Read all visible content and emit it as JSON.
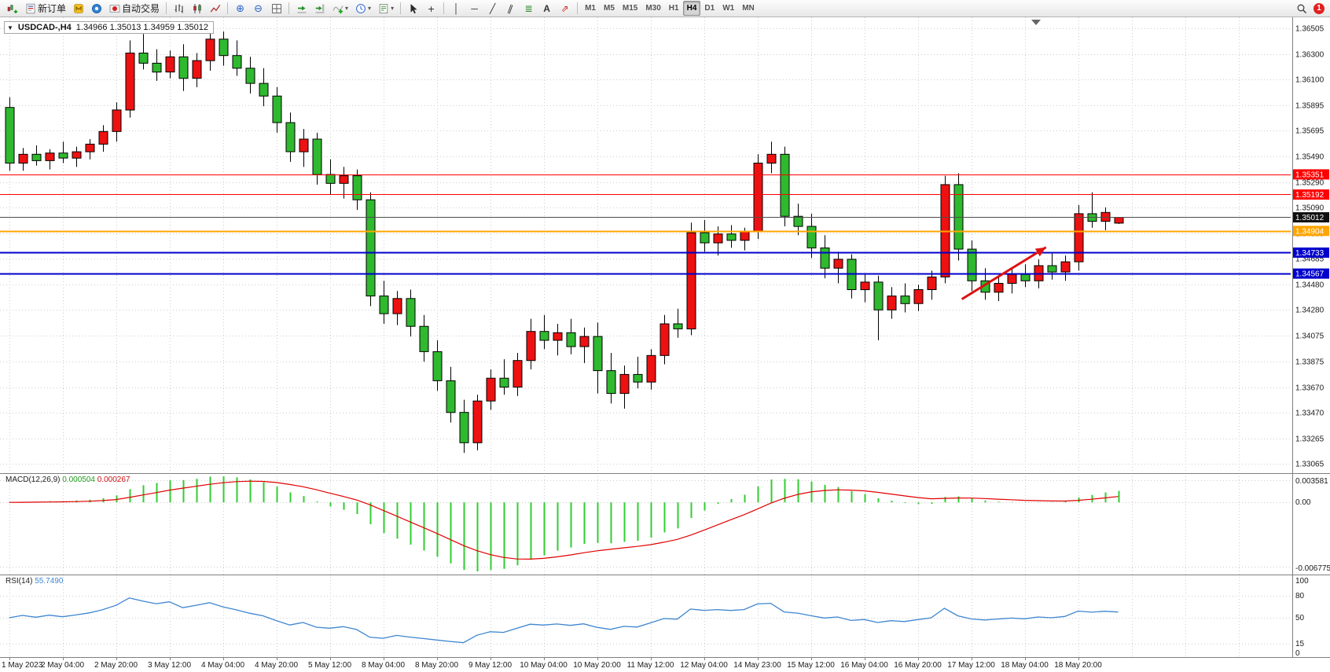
{
  "toolbar": {
    "groups": [
      {
        "name": "trade",
        "items": [
          {
            "name": "new-chart-button",
            "icon": "new-chart-icon"
          },
          {
            "name": "new-order-button",
            "icon": "new-order-icon",
            "label": "新订单"
          },
          {
            "name": "metaeditor-button",
            "icon": "metaeditor-icon"
          },
          {
            "name": "community-button",
            "icon": "community-icon"
          },
          {
            "name": "autotrading-button",
            "icon": "autotrading-icon",
            "label": "自动交易"
          }
        ]
      },
      {
        "name": "chart-types",
        "items": [
          {
            "name": "bar-chart-button",
            "icon": "bar-chart-icon"
          },
          {
            "name": "candlestick-chart-button",
            "icon": "candlestick-icon"
          },
          {
            "name": "line-chart-button",
            "icon": "line-chart-icon"
          }
        ]
      },
      {
        "name": "zoom",
        "items": [
          {
            "name": "zoom-in-button",
            "icon": "zoom-in-icon"
          },
          {
            "name": "zoom-out-button",
            "icon": "zoom-out-icon"
          },
          {
            "name": "tile-windows-button",
            "icon": "tile-windows-icon"
          }
        ]
      },
      {
        "name": "chart-tools",
        "items": [
          {
            "name": "auto-scroll-button",
            "icon": "auto-scroll-icon"
          },
          {
            "name": "chart-shift-button",
            "icon": "chart-shift-icon"
          },
          {
            "name": "indicators-button",
            "icon": "indicators-icon",
            "caret": true
          },
          {
            "name": "periods-button",
            "icon": "clock-icon",
            "caret": true
          },
          {
            "name": "templates-button",
            "icon": "templates-icon",
            "caret": true
          }
        ]
      },
      {
        "name": "cursor-tools",
        "items": [
          {
            "name": "cursor-button",
            "icon": "cursor-icon"
          },
          {
            "name": "crosshair-button",
            "icon": "crosshair-icon"
          }
        ]
      },
      {
        "name": "draw-tools",
        "items": [
          {
            "name": "vertical-line-button",
            "icon": "vertical-line-icon"
          },
          {
            "name": "horizontal-line-button",
            "icon": "horizontal-line-icon"
          },
          {
            "name": "trendline-button",
            "icon": "trendline-icon"
          },
          {
            "name": "channel-button",
            "icon": "channel-icon"
          },
          {
            "name": "fibonacci-button",
            "icon": "fibonacci-icon"
          },
          {
            "name": "text-button",
            "icon": "text-icon"
          },
          {
            "name": "arrows-button",
            "icon": "arrows-icon"
          }
        ]
      }
    ],
    "timeframes": [
      "M1",
      "M5",
      "M15",
      "M30",
      "H1",
      "H4",
      "D1",
      "W1",
      "MN"
    ],
    "active_timeframe": "H4",
    "notification_count": "1"
  },
  "chart": {
    "title": "USDCAD-,H4",
    "ohlc": "1.34966 1.35013 1.34959 1.35012"
  },
  "colors": {
    "bull": "#EE1111",
    "bear": "#2FB92F",
    "outline": "#000000",
    "grid": "#CDCDCD",
    "separator": "#7F7F7F",
    "axis_text": "#1a1a1a",
    "current_line": "#4D4D4D",
    "current_tag": "#111111",
    "macd_hist": "#32CD32",
    "macd_signal": "#E10000",
    "rsi_line": "#3E86D0",
    "arrow": "#DD1111"
  },
  "chart_data": {
    "type": "candlestick",
    "symbol": "USDCAD-",
    "timeframe": "H4",
    "current_bar": {
      "open": "1.34966",
      "high": "1.35013",
      "low": "1.34959",
      "close": "1.35012"
    },
    "view_range": {
      "top": 1.3658,
      "bottom": 1.3299
    },
    "price_axis_labels": [
      "1.36505",
      "1.36300",
      "1.36100",
      "1.35895",
      "1.35695",
      "1.35490",
      "1.35290",
      "1.35090",
      "1.34885",
      "1.34685",
      "1.34480",
      "1.34280",
      "1.34075",
      "1.33875",
      "1.33670",
      "1.33470",
      "1.33265",
      "1.33065"
    ],
    "time_labels": [
      "1 May 2023",
      "2 May 04:00",
      "2 May 20:00",
      "3 May 12:00",
      "4 May 04:00",
      "4 May 20:00",
      "5 May 12:00",
      "8 May 04:00",
      "8 May 20:00",
      "9 May 12:00",
      "10 May 04:00",
      "10 May 20:00",
      "11 May 12:00",
      "12 May 04:00",
      "14 May 23:00",
      "15 May 12:00",
      "16 May 04:00",
      "16 May 20:00",
      "17 May 12:00",
      "18 May 04:00",
      "18 May 20:00"
    ],
    "time_label_step": 4,
    "candles": [
      [
        1.3588,
        1.3596,
        1.3538,
        1.3544
      ],
      [
        1.3544,
        1.3556,
        1.3538,
        1.3551
      ],
      [
        1.3551,
        1.3558,
        1.3542,
        1.3546
      ],
      [
        1.3546,
        1.3555,
        1.3539,
        1.3552
      ],
      [
        1.3552,
        1.3561,
        1.3544,
        1.3548
      ],
      [
        1.3548,
        1.3557,
        1.3541,
        1.3553
      ],
      [
        1.3553,
        1.3563,
        1.3547,
        1.3559
      ],
      [
        1.3559,
        1.3574,
        1.3553,
        1.3569
      ],
      [
        1.3569,
        1.3592,
        1.3561,
        1.3586
      ],
      [
        1.3586,
        1.3641,
        1.358,
        1.3631
      ],
      [
        1.3631,
        1.3646,
        1.3618,
        1.3623
      ],
      [
        1.3623,
        1.3634,
        1.3609,
        1.3616
      ],
      [
        1.3616,
        1.3633,
        1.3611,
        1.3628
      ],
      [
        1.3628,
        1.3638,
        1.3601,
        1.3611
      ],
      [
        1.3611,
        1.3631,
        1.3604,
        1.3625
      ],
      [
        1.3625,
        1.3649,
        1.3617,
        1.3642
      ],
      [
        1.3642,
        1.3648,
        1.3621,
        1.3629
      ],
      [
        1.3629,
        1.3641,
        1.3613,
        1.3619
      ],
      [
        1.3619,
        1.3628,
        1.3599,
        1.3607
      ],
      [
        1.3607,
        1.3619,
        1.3589,
        1.3597
      ],
      [
        1.3597,
        1.3604,
        1.3568,
        1.3576
      ],
      [
        1.3576,
        1.3584,
        1.3545,
        1.3553
      ],
      [
        1.3553,
        1.3571,
        1.3541,
        1.3563
      ],
      [
        1.3563,
        1.3568,
        1.3527,
        1.3535
      ],
      [
        1.3535,
        1.3547,
        1.3519,
        1.3528
      ],
      [
        1.3528,
        1.3541,
        1.3516,
        1.3534
      ],
      [
        1.3534,
        1.3539,
        1.3507,
        1.3515
      ],
      [
        1.3515,
        1.3521,
        1.3431,
        1.3439
      ],
      [
        1.3439,
        1.3451,
        1.3417,
        1.3425
      ],
      [
        1.3425,
        1.3443,
        1.3416,
        1.3437
      ],
      [
        1.3437,
        1.3444,
        1.3407,
        1.3415
      ],
      [
        1.3415,
        1.3424,
        1.3387,
        1.3395
      ],
      [
        1.3395,
        1.3404,
        1.3364,
        1.3372
      ],
      [
        1.3372,
        1.3383,
        1.3339,
        1.3347
      ],
      [
        1.3347,
        1.3357,
        1.3315,
        1.3323
      ],
      [
        1.3323,
        1.3361,
        1.3317,
        1.3356
      ],
      [
        1.3356,
        1.3381,
        1.3349,
        1.3374
      ],
      [
        1.3374,
        1.3389,
        1.3361,
        1.3367
      ],
      [
        1.3367,
        1.3394,
        1.336,
        1.3388
      ],
      [
        1.3388,
        1.3421,
        1.3381,
        1.3411
      ],
      [
        1.3411,
        1.3424,
        1.3397,
        1.3404
      ],
      [
        1.3404,
        1.3417,
        1.3392,
        1.341
      ],
      [
        1.341,
        1.3421,
        1.3393,
        1.3399
      ],
      [
        1.3399,
        1.3414,
        1.3386,
        1.3407
      ],
      [
        1.3407,
        1.3418,
        1.3362,
        1.338
      ],
      [
        1.338,
        1.3394,
        1.3354,
        1.3362
      ],
      [
        1.3362,
        1.3384,
        1.335,
        1.3377
      ],
      [
        1.3377,
        1.3391,
        1.3366,
        1.3371
      ],
      [
        1.3371,
        1.3397,
        1.3365,
        1.3392
      ],
      [
        1.3392,
        1.3424,
        1.3385,
        1.3417
      ],
      [
        1.3417,
        1.3429,
        1.3406,
        1.3413
      ],
      [
        1.3413,
        1.3497,
        1.3408,
        1.3489
      ],
      [
        1.3489,
        1.3499,
        1.3474,
        1.3481
      ],
      [
        1.3481,
        1.3494,
        1.3471,
        1.3488
      ],
      [
        1.3488,
        1.3495,
        1.3477,
        1.3483
      ],
      [
        1.3483,
        1.3493,
        1.3475,
        1.349
      ],
      [
        1.349,
        1.3551,
        1.3484,
        1.3544
      ],
      [
        1.3544,
        1.3561,
        1.3536,
        1.3551
      ],
      [
        1.3551,
        1.3557,
        1.3494,
        1.3502
      ],
      [
        1.3502,
        1.3512,
        1.3487,
        1.3494
      ],
      [
        1.3494,
        1.3504,
        1.3469,
        1.3477
      ],
      [
        1.3477,
        1.3487,
        1.3453,
        1.3461
      ],
      [
        1.3461,
        1.3474,
        1.3449,
        1.3468
      ],
      [
        1.3468,
        1.3472,
        1.3437,
        1.3444
      ],
      [
        1.3444,
        1.3457,
        1.3434,
        1.345
      ],
      [
        1.345,
        1.3455,
        1.3404,
        1.3428
      ],
      [
        1.3428,
        1.3446,
        1.3421,
        1.3439
      ],
      [
        1.3439,
        1.3449,
        1.3426,
        1.3433
      ],
      [
        1.3433,
        1.3448,
        1.3427,
        1.3444
      ],
      [
        1.3444,
        1.3459,
        1.3436,
        1.3454
      ],
      [
        1.3454,
        1.3534,
        1.3449,
        1.3527
      ],
      [
        1.3527,
        1.3536,
        1.3467,
        1.3476
      ],
      [
        1.3476,
        1.3483,
        1.3443,
        1.3451
      ],
      [
        1.3451,
        1.3461,
        1.3436,
        1.3442
      ],
      [
        1.3442,
        1.3454,
        1.3435,
        1.3449
      ],
      [
        1.3449,
        1.3461,
        1.3441,
        1.3456
      ],
      [
        1.3456,
        1.3464,
        1.3446,
        1.3451
      ],
      [
        1.3451,
        1.3468,
        1.3445,
        1.3463
      ],
      [
        1.3463,
        1.3473,
        1.3452,
        1.3458
      ],
      [
        1.3458,
        1.3471,
        1.3451,
        1.3466
      ],
      [
        1.3466,
        1.3511,
        1.3459,
        1.3504
      ],
      [
        1.3504,
        1.3521,
        1.3493,
        1.3498
      ],
      [
        1.3498,
        1.3509,
        1.3491,
        1.3505
      ],
      [
        1.34966,
        1.35013,
        1.34959,
        1.35012
      ]
    ],
    "hlines": [
      {
        "price": 1.35351,
        "label": "1.35351",
        "color": "#FF0000",
        "width": 1
      },
      {
        "price": 1.35192,
        "label": "1.35192",
        "color": "#FF0000",
        "width": 1
      },
      {
        "price": 1.34904,
        "label": "1.34904",
        "color": "#FFA500",
        "width": 2
      },
      {
        "price": 1.34733,
        "label": "1.34733",
        "color": "#0000CC",
        "width": 2
      },
      {
        "price": 1.34567,
        "label": "1.34567",
        "color": "#0000CC",
        "width": 2
      }
    ],
    "current_price": {
      "price": 1.35012,
      "label": "1.35012"
    },
    "trend_arrow": {
      "from_index": 71.3,
      "from_price": 1.34365,
      "to_index": 77.6,
      "to_price": 1.34775
    },
    "macd": {
      "label": "MACD(12,26,9)",
      "value_main": "0.000504",
      "value_signal": "0.000267",
      "axis_max": "0.003581",
      "axis_zero": "0.00",
      "axis_min": "-0.006775"
    },
    "rsi": {
      "label": "RSI(14)",
      "value": "55.7490",
      "axis_labels": [
        "100",
        "80",
        "50",
        "15",
        "0"
      ],
      "levels": [
        80,
        50,
        15
      ]
    }
  }
}
